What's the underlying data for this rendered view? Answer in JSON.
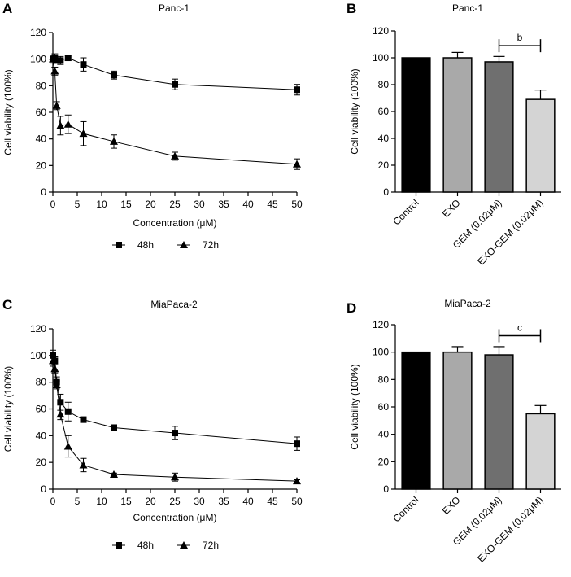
{
  "chart_data": [
    {
      "panel": "A",
      "type": "line",
      "title": "Panc-1",
      "xlabel": "Concentration (μM)",
      "ylabel": "Cell viability (100%)",
      "xlim": [
        0,
        50
      ],
      "ylim": [
        0,
        120
      ],
      "xticks": [
        0,
        5,
        10,
        15,
        20,
        25,
        30,
        35,
        40,
        45,
        50
      ],
      "yticks": [
        0,
        20,
        40,
        60,
        80,
        100,
        120
      ],
      "legend_position": "bottom",
      "series": [
        {
          "name": "48h",
          "marker": "square",
          "x": [
            0,
            0.39,
            0.78,
            1.56,
            3.125,
            6.25,
            12.5,
            25,
            50
          ],
          "y": [
            100,
            101,
            99,
            99,
            101,
            96,
            88,
            81,
            77
          ],
          "err": [
            3,
            3,
            2,
            3,
            2,
            5,
            3,
            4,
            4
          ]
        },
        {
          "name": "72h",
          "marker": "triangle",
          "x": [
            0,
            0.39,
            0.78,
            1.56,
            3.125,
            6.25,
            12.5,
            25,
            50
          ],
          "y": [
            100,
            91,
            65,
            50,
            51,
            44,
            38,
            27,
            21
          ],
          "err": [
            3,
            3,
            3,
            7,
            7,
            9,
            5,
            3,
            4
          ]
        }
      ]
    },
    {
      "panel": "B",
      "type": "bar",
      "title": "Panc-1",
      "ylabel": "Cell viability (100%)",
      "ylim": [
        0,
        120
      ],
      "yticks": [
        0,
        20,
        40,
        60,
        80,
        100,
        120
      ],
      "categories": [
        "Control",
        "EXO",
        "GEM (0.02μM)",
        "EXO-GEM (0.02μM)"
      ],
      "values": [
        100,
        100,
        97,
        69
      ],
      "err": [
        0,
        4,
        4,
        7
      ],
      "colors": [
        "#000000",
        "#a9a9a9",
        "#6f6f6f",
        "#d4d4d4"
      ],
      "significance": {
        "label": "b",
        "between": [
          2,
          3
        ]
      }
    },
    {
      "panel": "C",
      "type": "line",
      "title": "MiaPaca-2",
      "xlabel": "Concentration (μM)",
      "ylabel": "Cell viability (100%)",
      "xlim": [
        0,
        50
      ],
      "ylim": [
        0,
        120
      ],
      "xticks": [
        0,
        5,
        10,
        15,
        20,
        25,
        30,
        35,
        40,
        45,
        50
      ],
      "yticks": [
        0,
        20,
        40,
        60,
        80,
        100,
        120
      ],
      "legend_position": "bottom",
      "series": [
        {
          "name": "48h",
          "marker": "square",
          "x": [
            0,
            0.39,
            0.78,
            1.56,
            3.125,
            6.25,
            12.5,
            25,
            50
          ],
          "y": [
            100,
            96,
            80,
            65,
            58,
            52,
            46,
            42,
            34
          ],
          "err": [
            4,
            3,
            4,
            6,
            7,
            2,
            1,
            5,
            5
          ]
        },
        {
          "name": "72h",
          "marker": "triangle",
          "x": [
            0,
            0.39,
            0.78,
            1.56,
            3.125,
            6.25,
            12.5,
            25,
            50
          ],
          "y": [
            96,
            90,
            78,
            56,
            32,
            18,
            11,
            9,
            6
          ],
          "err": [
            4,
            3,
            3,
            4,
            8,
            5,
            1,
            3,
            1
          ]
        }
      ]
    },
    {
      "panel": "D",
      "type": "bar",
      "title": "MiaPaca-2",
      "ylabel": "Cell viability (100%)",
      "ylim": [
        0,
        120
      ],
      "yticks": [
        0,
        20,
        40,
        60,
        80,
        100,
        120
      ],
      "categories": [
        "Control",
        "EXO",
        "GEM (0.02μM)",
        "EXO-GEM (0.02μM)"
      ],
      "values": [
        100,
        100,
        98,
        55
      ],
      "err": [
        0,
        4,
        6,
        6
      ],
      "colors": [
        "#000000",
        "#a9a9a9",
        "#6f6f6f",
        "#d4d4d4"
      ],
      "significance": {
        "label": "c",
        "between": [
          2,
          3
        ]
      }
    }
  ]
}
